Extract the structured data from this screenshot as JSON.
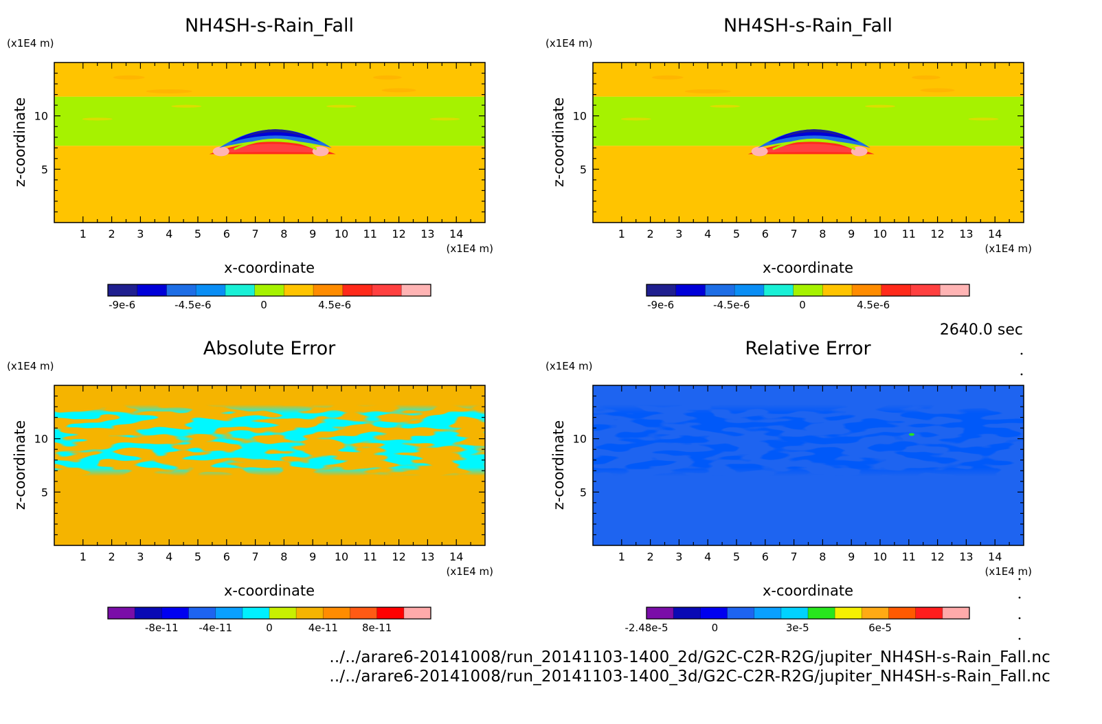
{
  "time_label": "2640.0 sec",
  "files": [
    "../../arare6-20141008/run_20141103-1400_2d/G2C-C2R-R2G/jupiter_NH4SH-s-Rain_Fall.nc",
    "../../arare6-20141008/run_20141103-1400_3d/G2C-C2R-R2G/jupiter_NH4SH-s-Rain_Fall.nc"
  ],
  "chart_data": [
    {
      "type": "heatmap",
      "title": "NH4SH-s-Rain_Fall",
      "xlabel": "x-coordinate",
      "ylabel": "z-coordinate",
      "x_unit": "(x1E4 m)",
      "y_unit": "(x1E4 m)",
      "xlim": [
        0,
        15
      ],
      "ylim": [
        0,
        15
      ],
      "xticks": [
        "1",
        "2",
        "3",
        "4",
        "5",
        "6",
        "7",
        "8",
        "9",
        "10",
        "11",
        "12",
        "13",
        "14"
      ],
      "yticks": [
        "5",
        "10"
      ],
      "background_value": 0,
      "layers": [
        {
          "name": "lower background",
          "z": [
            0,
            7.2
          ],
          "value": 1.5e-06
        },
        {
          "name": "middle band",
          "z": [
            7.2,
            11.8
          ],
          "value": -2e-07
        },
        {
          "name": "upper background",
          "z": [
            11.8,
            15
          ],
          "value": 1.5e-06
        }
      ],
      "features": [
        {
          "name": "negative arc",
          "x_center": 7.7,
          "z_center": 7.9,
          "min": -9e-06
        },
        {
          "name": "positive arc",
          "x_center": 7.6,
          "z_center": 6.8,
          "max": 9e-06
        }
      ],
      "colorbar": {
        "colors": [
          "#1f1f8f",
          "#0000d8",
          "#1e6ee6",
          "#0a8ef5",
          "#19f0d6",
          "#a6f200",
          "#ffc400",
          "#ff8c00",
          "#ff2a1a",
          "#ff4040",
          "#ffb4b4"
        ],
        "labels": [
          "-9e-6",
          "-4.5e-6",
          "0",
          "4.5e-6"
        ],
        "label_values": [
          -9e-06,
          -4.5e-06,
          0,
          4.5e-06
        ],
        "range": [
          -9.9e-06,
          1.06e-05
        ]
      }
    },
    {
      "type": "heatmap",
      "title": "NH4SH-s-Rain_Fall",
      "xlabel": "x-coordinate",
      "ylabel": "z-coordinate",
      "x_unit": "(x1E4 m)",
      "y_unit": "(x1E4 m)",
      "xlim": [
        0,
        15
      ],
      "ylim": [
        0,
        15
      ],
      "xticks": [
        "1",
        "2",
        "3",
        "4",
        "5",
        "6",
        "7",
        "8",
        "9",
        "10",
        "11",
        "12",
        "13",
        "14"
      ],
      "yticks": [
        "5",
        "10"
      ],
      "background_value": 0,
      "layers": [
        {
          "name": "lower background",
          "z": [
            0,
            7.2
          ],
          "value": 1.5e-06
        },
        {
          "name": "middle band",
          "z": [
            7.2,
            11.8
          ],
          "value": -2e-07
        },
        {
          "name": "upper background",
          "z": [
            11.8,
            15
          ],
          "value": 1.5e-06
        }
      ],
      "features": [
        {
          "name": "negative arc",
          "x_center": 7.7,
          "z_center": 7.9,
          "min": -9e-06
        },
        {
          "name": "positive arc",
          "x_center": 7.6,
          "z_center": 6.8,
          "max": 9e-06
        }
      ],
      "colorbar": {
        "colors": [
          "#1f1f8f",
          "#0000d8",
          "#1e6ee6",
          "#0a8ef5",
          "#19f0d6",
          "#a6f200",
          "#ffc400",
          "#ff8c00",
          "#ff2a1a",
          "#ff4040",
          "#ffb4b4"
        ],
        "labels": [
          "-9e-6",
          "-4.5e-6",
          "0",
          "4.5e-6"
        ],
        "label_values": [
          -9e-06,
          -4.5e-06,
          0,
          4.5e-06
        ],
        "range": [
          -9.9e-06,
          1.06e-05
        ]
      }
    },
    {
      "type": "heatmap",
      "title": "Absolute Error",
      "xlabel": "x-coordinate",
      "ylabel": "z-coordinate",
      "x_unit": "(x1E4 m)",
      "y_unit": "(x1E4 m)",
      "xlim": [
        0,
        15
      ],
      "ylim": [
        0,
        15
      ],
      "xticks": [
        "1",
        "2",
        "3",
        "4",
        "5",
        "6",
        "7",
        "8",
        "9",
        "10",
        "11",
        "12",
        "13",
        "14"
      ],
      "yticks": [
        "5",
        "10"
      ],
      "background_value": 2e-11,
      "noise_band_z": [
        6.5,
        13.2
      ],
      "noise_value": -1e-11,
      "colorbar": {
        "colors": [
          "#7a0ea8",
          "#0a0ab4",
          "#0000f0",
          "#1e64f0",
          "#0aa0ff",
          "#00f0ff",
          "#c8f000",
          "#f5b400",
          "#ff8c00",
          "#ff5a14",
          "#ff0000",
          "#ffaaaa"
        ],
        "labels": [
          "-8e-11",
          "-4e-11",
          "0",
          "4e-11",
          "8e-11"
        ],
        "label_values": [
          -8e-11,
          -4e-11,
          0,
          4e-11,
          8e-11
        ],
        "range": [
          -1.2e-10,
          1.2e-10
        ]
      }
    },
    {
      "type": "heatmap",
      "title": "Relative Error",
      "xlabel": "x-coordinate",
      "ylabel": "z-coordinate",
      "x_unit": "(x1E4 m)",
      "y_unit": "(x1E4 m)",
      "xlim": [
        0,
        15
      ],
      "ylim": [
        0,
        15
      ],
      "xticks": [
        "1",
        "2",
        "3",
        "4",
        "5",
        "6",
        "7",
        "8",
        "9",
        "10",
        "11",
        "12",
        "13",
        "14"
      ],
      "yticks": [
        "5",
        "10"
      ],
      "background_value": 1e-05,
      "noise_band_z": [
        6.5,
        13.2
      ],
      "noise_value": 0,
      "colorbar": {
        "colors": [
          "#7a0ea8",
          "#0a0ab4",
          "#0000f0",
          "#1e64f0",
          "#0aa0ff",
          "#00d2ff",
          "#28e61e",
          "#f5f000",
          "#ffaa14",
          "#ff5a00",
          "#ff1e1e",
          "#ffaaaa"
        ],
        "labels": [
          "-2.48e-5",
          "0",
          "3e-5",
          "6e-5"
        ],
        "label_values": [
          -2.48e-05,
          0,
          3e-05,
          6e-05
        ],
        "range": [
          -2.48e-05,
          9.24e-05
        ]
      }
    }
  ]
}
